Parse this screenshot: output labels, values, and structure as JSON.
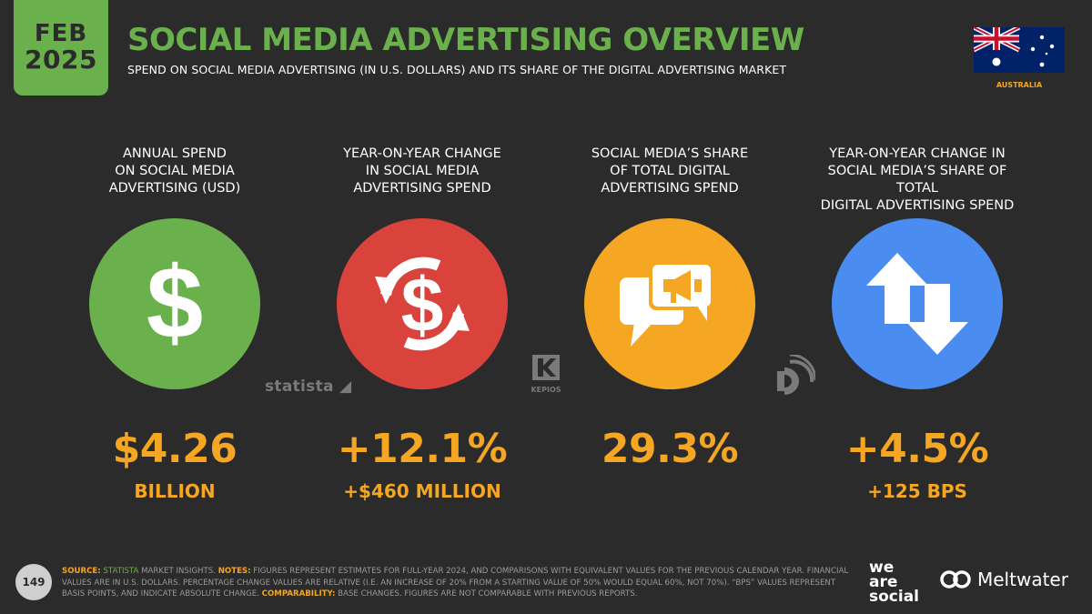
{
  "badge": {
    "month": "FEB",
    "year": "2025"
  },
  "header": {
    "title": "SOCIAL MEDIA ADVERTISING OVERVIEW",
    "subtitle": "SPEND ON SOCIAL MEDIA ADVERTISING (IN U.S. DOLLARS) AND ITS SHARE OF THE DIGITAL ADVERTISING MARKET"
  },
  "country": {
    "name": "AUSTRALIA",
    "flag_icon": "australia-flag-icon"
  },
  "stats": [
    {
      "label_lines": [
        "ANNUAL SPEND",
        "ON SOCIAL MEDIA",
        "ADVERTISING (USD)"
      ],
      "value": "$4.26",
      "sub_value": "BILLION",
      "icon": "dollar-icon",
      "color": "#6ab04c"
    },
    {
      "label_lines": [
        "YEAR-ON-YEAR CHANGE",
        "IN SOCIAL MEDIA",
        "ADVERTISING SPEND"
      ],
      "value": "+12.1%",
      "sub_value": "+$460 MILLION",
      "icon": "dollar-exchange-icon",
      "color": "#d9433b"
    },
    {
      "label_lines": [
        "SOCIAL MEDIA’S SHARE",
        "OF TOTAL DIGITAL",
        "ADVERTISING SPEND"
      ],
      "value": "29.3%",
      "sub_value": "",
      "icon": "speech-bubbles-megaphone-icon",
      "color": "#f5a623"
    },
    {
      "label_lines": [
        "YEAR-ON-YEAR CHANGE IN",
        "SOCIAL MEDIA’S SHARE OF TOTAL",
        "DIGITAL ADVERTISING SPEND"
      ],
      "value": "+4.5%",
      "sub_value": "+125 BPS",
      "icon": "up-down-arrows-icon",
      "color": "#4a8cf0"
    }
  ],
  "sources": {
    "statista": "statista",
    "kepios": "KEPIOS"
  },
  "accent_color": "#f5a623",
  "footer": {
    "page_number": "149",
    "source_label": "SOURCE:",
    "source_name": "STATISTA",
    "source_rest": " MARKET INSIGHTS. ",
    "notes_label": "NOTES:",
    "notes_text": " FIGURES REPRESENT ESTIMATES FOR FULL-YEAR 2024, AND COMPARISONS WITH EQUIVALENT VALUES FOR THE PREVIOUS CALENDAR YEAR. FINANCIAL VALUES ARE IN U.S. DOLLARS. PERCENTAGE CHANGE VALUES ARE RELATIVE (I.E. AN INCREASE OF 20% FROM A STARTING VALUE OF 50% WOULD EQUAL 60%, NOT 70%). “BPS” VALUES REPRESENT BASIS POINTS, AND INDICATE ABSOLUTE CHANGE. ",
    "comparability_label": "COMPARABILITY:",
    "comparability_text": " BASE CHANGES. FIGURES ARE NOT COMPARABLE WITH PREVIOUS REPORTS.",
    "brand_we": "we",
    "brand_are": "are",
    "brand_social": "social",
    "brand_meltwater": "Meltwater"
  }
}
